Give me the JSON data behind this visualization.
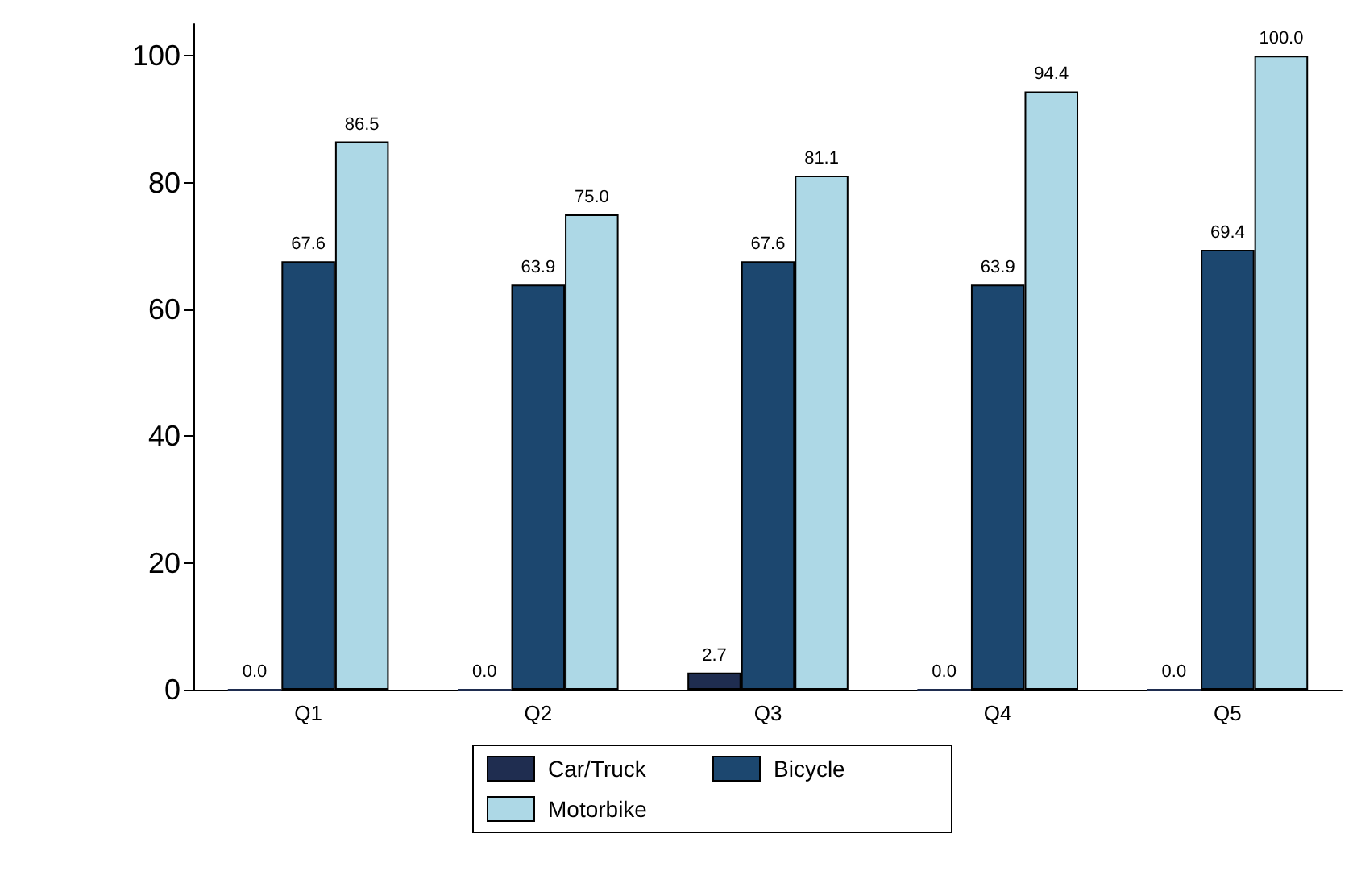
{
  "chart_data": {
    "type": "bar",
    "categories": [
      "Q1",
      "Q2",
      "Q3",
      "Q4",
      "Q5"
    ],
    "series": [
      {
        "name": "Car/Truck",
        "color": "#1f2d50",
        "values": [
          0,
          0,
          2.7,
          0,
          0
        ],
        "value_labels": [
          "0.0",
          "0.0",
          "2.7",
          "0.0",
          "0.0"
        ]
      },
      {
        "name": "Bicycle",
        "color": "#1c476f",
        "values": [
          67.6,
          63.9,
          67.6,
          63.9,
          69.4
        ],
        "value_labels": [
          "67.6",
          "63.9",
          "67.6",
          "63.9",
          "69.4"
        ]
      },
      {
        "name": "Motorbike",
        "color": "#add8e6",
        "values": [
          86.5,
          75.0,
          81.1,
          94.4,
          100.0
        ],
        "value_labels": [
          "86.5",
          "75.0",
          "81.1",
          "94.4",
          "100.0"
        ]
      }
    ],
    "ylim": [
      0,
      105
    ],
    "yticks": [
      0,
      20,
      40,
      60,
      80,
      100
    ],
    "grid": false,
    "legend": "bottom"
  }
}
